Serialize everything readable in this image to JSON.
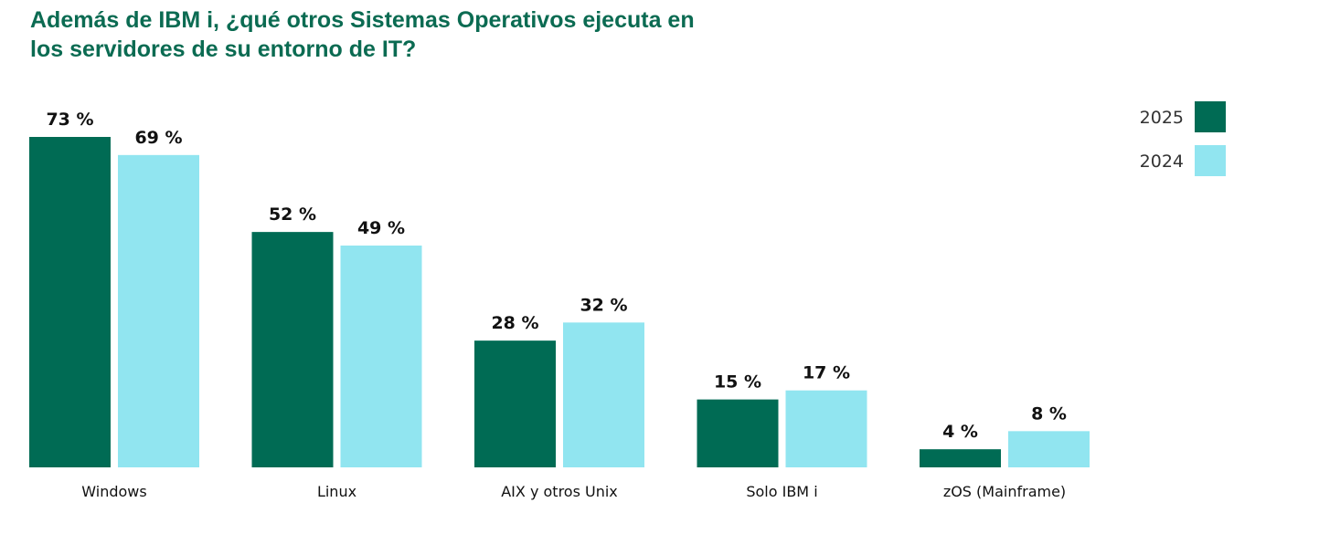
{
  "title": "Además de IBM i, ¿qué otros Sistemas Operativos ejecuta en los servidores de su entorno de IT?",
  "colors": {
    "title": "#0b6b52",
    "series_2025": "#006b54",
    "series_2024": "#91e5f0"
  },
  "chart_data": {
    "type": "bar",
    "title": "Además de IBM i, ¿qué otros Sistemas Operativos ejecuta en los servidores de su entorno de IT?",
    "categories": [
      "Windows",
      "Linux",
      "AIX y otros Unix",
      "Solo IBM i",
      "zOS (Mainframe)"
    ],
    "series": [
      {
        "name": "2025",
        "values": [
          73,
          52,
          28,
          15,
          4
        ],
        "labels": [
          "73 %",
          "52 %",
          "28 %",
          "15 %",
          "4 %"
        ],
        "color": "#006b54"
      },
      {
        "name": "2024",
        "values": [
          69,
          49,
          32,
          17,
          8
        ],
        "labels": [
          "69 %",
          "49 %",
          "32 %",
          "17 %",
          "8 %"
        ],
        "color": "#91e5f0"
      }
    ],
    "xlabel": "",
    "ylabel": "",
    "ylim": [
      0,
      80
    ],
    "grid": false,
    "legend_position": "top-right"
  }
}
